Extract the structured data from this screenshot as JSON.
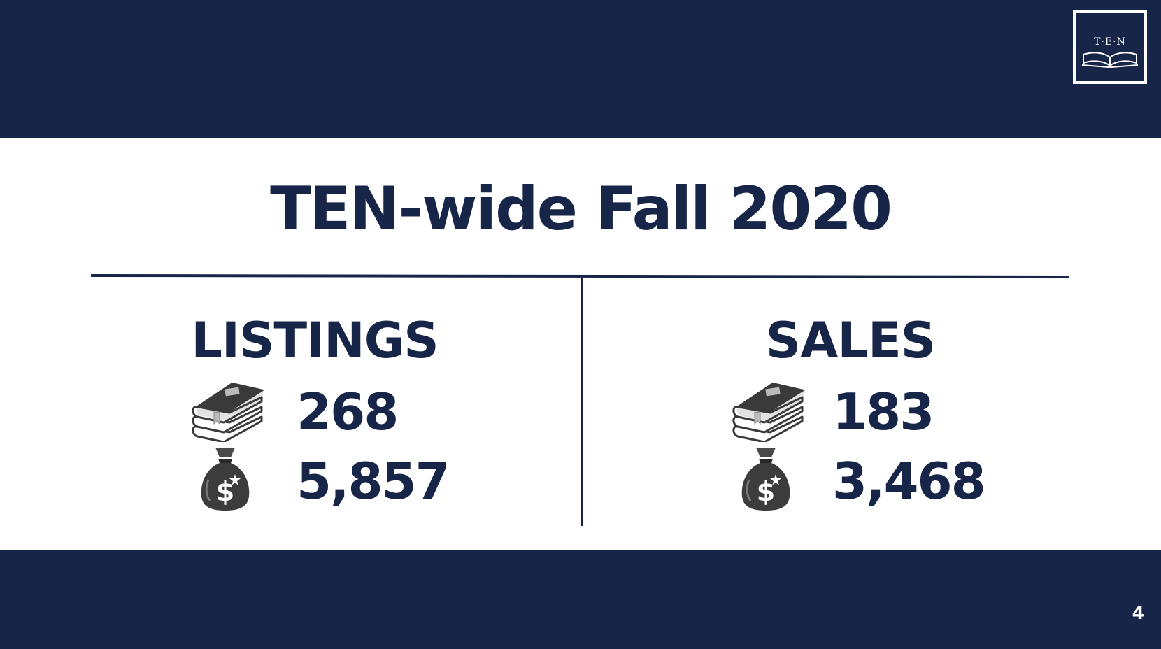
{
  "slide": {
    "logo": {
      "text": "T·E·N",
      "icon": "open-book-icon"
    },
    "title": "TEN-wide Fall 2020",
    "page_number": "4"
  },
  "listings": {
    "heading": "LISTINGS",
    "books_icon": "stack-of-books-icon",
    "books_value": "268",
    "money_icon": "money-bag-icon",
    "money_value": "5,857"
  },
  "sales": {
    "heading": "SALES",
    "books_icon": "stack-of-books-icon",
    "books_value": "183",
    "money_icon": "money-bag-icon",
    "money_value": "3,468"
  },
  "colors": {
    "navy": "#172548",
    "white": "#ffffff",
    "icon_gray": "#3a3a3a"
  }
}
